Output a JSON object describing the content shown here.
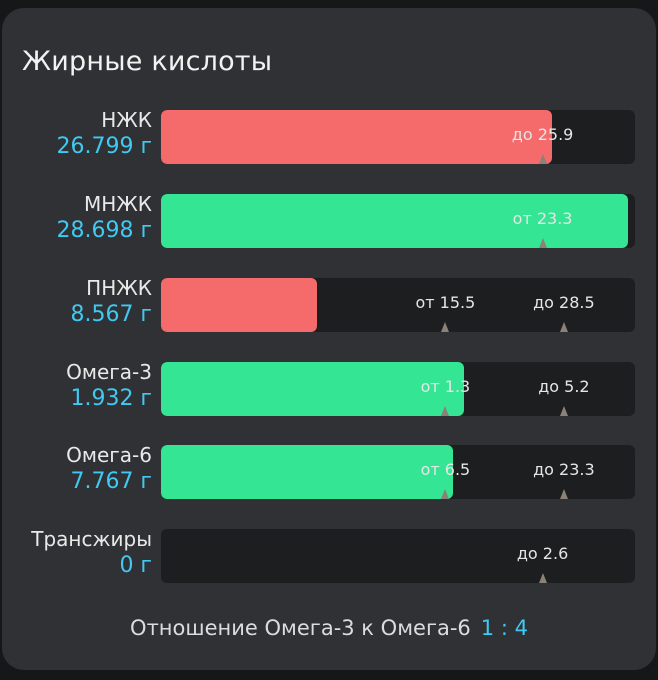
{
  "title": "Жирные кислоты",
  "colors": {
    "below": "#f56b6b",
    "ok": "#34e594",
    "accent": "#40c9f2"
  },
  "rows": [
    {
      "name": "НЖК",
      "amount": "26.799 г",
      "fill_pct": 82.5,
      "status": "below",
      "markers": [
        {
          "text": "до 25.9",
          "pos_pct": 80.5
        }
      ]
    },
    {
      "name": "МНЖК",
      "amount": "28.698 г",
      "fill_pct": 98.5,
      "status": "ok",
      "markers": [
        {
          "text": "от 23.3",
          "pos_pct": 80.5
        }
      ]
    },
    {
      "name": "ПНЖК",
      "amount": "8.567 г",
      "fill_pct": 33,
      "status": "below",
      "markers": [
        {
          "text": "от 15.5",
          "pos_pct": 60
        },
        {
          "text": "до 28.5",
          "pos_pct": 85
        }
      ]
    },
    {
      "name": "Омега-3",
      "amount": "1.932 г",
      "fill_pct": 64,
      "status": "ok",
      "markers": [
        {
          "text": "от 1.3",
          "pos_pct": 60
        },
        {
          "text": "до 5.2",
          "pos_pct": 85
        }
      ]
    },
    {
      "name": "Омега-6",
      "amount": "7.767 г",
      "fill_pct": 61.5,
      "status": "ok",
      "markers": [
        {
          "text": "от 6.5",
          "pos_pct": 60
        },
        {
          "text": "до 23.3",
          "pos_pct": 85
        }
      ]
    },
    {
      "name": "Трансжиры",
      "amount": "0 г",
      "fill_pct": 0,
      "status": "ok",
      "markers": [
        {
          "text": "до 2.6",
          "pos_pct": 80.5
        }
      ]
    }
  ],
  "ratio": {
    "label": "Отношение Омега-3 к Омега-6",
    "value": "1 : 4"
  }
}
